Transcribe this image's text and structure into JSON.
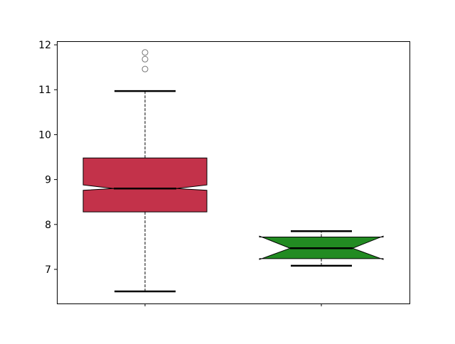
{
  "chart_data": {
    "type": "boxplot",
    "notched": true,
    "title": "",
    "xlabel": "",
    "ylabel": "",
    "ylim": [
      6.24,
      12.08
    ],
    "yticks": [
      7,
      8,
      9,
      10,
      11,
      12
    ],
    "xticks": [
      "",
      ""
    ],
    "grid": false,
    "boxes": [
      {
        "position": 1,
        "whislo": 6.51,
        "q1": 8.28,
        "med": 8.8,
        "q3": 9.48,
        "whishi": 10.97,
        "notch_lo": 8.76,
        "notch_hi": 8.88,
        "fliers": [
          11.46,
          11.68,
          11.83
        ],
        "color": "#c3324a"
      },
      {
        "position": 2,
        "whislo": 7.08,
        "q1": 7.24,
        "med": 7.47,
        "q3": 7.72,
        "whishi": 7.85,
        "notch_lo": 7.22,
        "notch_hi": 7.74,
        "fliers": [],
        "color": "#228b22"
      }
    ]
  }
}
